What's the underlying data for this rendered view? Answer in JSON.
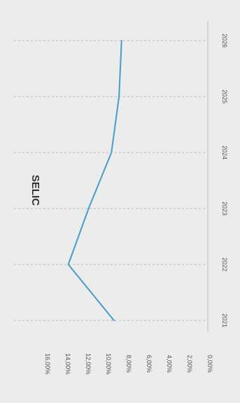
{
  "chart_data": {
    "type": "line",
    "title": "SELIC",
    "xlabel": "",
    "ylabel": "",
    "categories": [
      "2021",
      "2022",
      "2023",
      "2024",
      "2025",
      "2026"
    ],
    "series": [
      {
        "values": [
          9.25,
          13.75,
          11.75,
          9.5,
          8.75,
          8.5
        ]
      }
    ],
    "y_ticks": [
      "0,00%",
      "2,00%",
      "4,00%",
      "6,00%",
      "8,00%",
      "10,00%",
      "12,00%",
      "14,00%",
      "16,00%"
    ],
    "ylim": [
      0,
      16
    ],
    "grid": true,
    "orientation": "rotated 90 degrees clockwise",
    "colors": {
      "line": "#4a9cc9",
      "grid": "#b9b9b9",
      "background": "#ececec"
    }
  }
}
